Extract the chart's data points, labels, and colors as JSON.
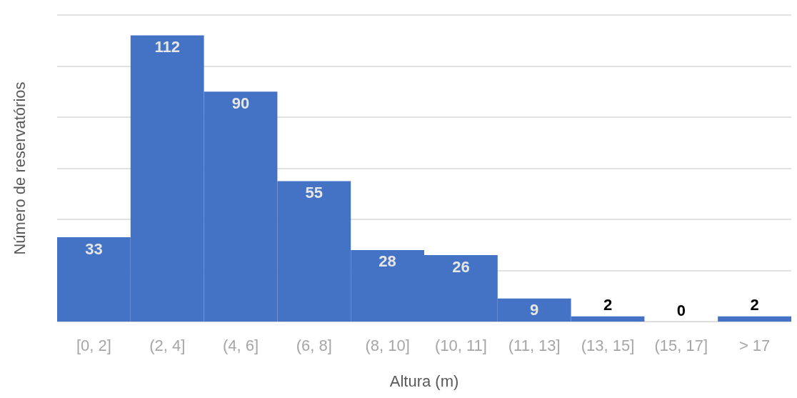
{
  "chart_data": {
    "type": "bar",
    "xlabel": "Altura (m)",
    "ylabel": "Número de reservatórios",
    "categories": [
      "[0, 2]",
      "(2, 4]",
      "(4, 6]",
      "(6, 8]",
      "(8, 10]",
      "(10, 11]",
      "(11, 13]",
      "(13, 15]",
      "(15, 17]",
      "> 17"
    ],
    "values": [
      33,
      112,
      90,
      55,
      28,
      26,
      9,
      2,
      0,
      2
    ],
    "color": "#4472c4",
    "ylim": [
      0,
      120
    ],
    "yticks": [
      {
        "value": 0,
        "label": null
      },
      {
        "value": 20,
        "label": null
      },
      {
        "value": 40,
        "label": null
      },
      {
        "value": 60,
        "label": null
      },
      {
        "value": 80,
        "label": null
      },
      {
        "value": 100,
        "label": null
      },
      {
        "value": 120,
        "label": null
      }
    ],
    "grid": "y",
    "tick_labels": "x",
    "data_labels": true
  }
}
